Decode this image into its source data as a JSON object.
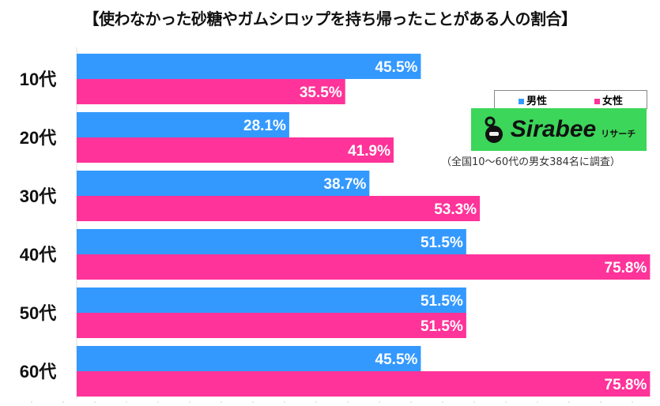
{
  "title": "【使わなかった砂糖やガムシロップを持ち帰ったことがある人の割合】",
  "legend": {
    "male": "男性",
    "female": "女性"
  },
  "logo": {
    "name": "Sirabee",
    "sub": "リサーチ"
  },
  "note": "（全国10～60代の男女384名に調査）",
  "colors": {
    "male": "#3399ff",
    "female": "#ff3399"
  },
  "chart_data": {
    "type": "bar",
    "orientation": "horizontal",
    "title": "【使わなかった砂糖やガムシロップを持ち帰ったことがある人の割合】",
    "categories": [
      "10代",
      "20代",
      "30代",
      "40代",
      "50代",
      "60代"
    ],
    "series": [
      {
        "name": "男性",
        "values": [
          45.5,
          28.1,
          38.7,
          51.5,
          51.5,
          45.5
        ]
      },
      {
        "name": "女性",
        "values": [
          35.5,
          41.9,
          53.3,
          75.8,
          51.5,
          75.8
        ]
      }
    ],
    "labels": [
      [
        "45.5%",
        "28.1%",
        "38.7%",
        "51.5%",
        "51.5%",
        "45.5%"
      ],
      [
        "35.5%",
        "41.9%",
        "53.3%",
        "75.8%",
        "51.5%",
        "75.8%"
      ]
    ],
    "unit": "%",
    "xlim": [
      0,
      75.8
    ],
    "legend": "top-right",
    "grid": false
  }
}
